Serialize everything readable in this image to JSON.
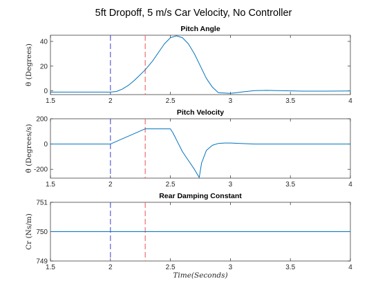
{
  "figure": {
    "suptitle": "5ft Dropoff,   5 m/s Car Velocity,  No Controller"
  },
  "colors": {
    "series": "#0072bd",
    "marker_blue": "#4f4fd8",
    "marker_red": "#f06060",
    "axis": "#262626"
  },
  "chart_data": [
    {
      "type": "line",
      "title": "Pitch Angle",
      "xlabel": "",
      "ylabel": "θ (Degrees)",
      "xlim": [
        1.5,
        4
      ],
      "ylim": [
        -3,
        45
      ],
      "xticks": [
        1.5,
        2,
        2.5,
        3,
        3.5,
        4
      ],
      "xtick_labels": [
        "1.5",
        "2",
        "2.5",
        "3",
        "3.5",
        "4"
      ],
      "yticks": [
        0,
        20,
        40
      ],
      "ytick_labels": [
        "0",
        "20",
        "40"
      ],
      "vlines": [
        {
          "x": 2.0,
          "color": "blue",
          "style": "dashed"
        },
        {
          "x": 2.29,
          "color": "red",
          "style": "dashed"
        }
      ],
      "series": [
        {
          "x": [
            1.5,
            1.9,
            2.0,
            2.05,
            2.1,
            2.15,
            2.2,
            2.29,
            2.35,
            2.4,
            2.45,
            2.5,
            2.55,
            2.6,
            2.65,
            2.7,
            2.75,
            2.8,
            2.85,
            2.9,
            3.0,
            3.1,
            3.2,
            3.3,
            3.4,
            3.5,
            3.6,
            3.8,
            4.0
          ],
          "y": [
            -1,
            -1,
            -1,
            -0.5,
            1.5,
            4.5,
            8.5,
            17,
            24,
            31,
            38,
            43,
            44.5,
            43,
            38,
            30,
            20,
            10,
            3,
            -1.5,
            -2,
            -0.8,
            0.2,
            0.4,
            0.2,
            0,
            -0.2,
            -0.2,
            -0.1
          ]
        }
      ]
    },
    {
      "type": "line",
      "title": "Pitch Velocity",
      "xlabel": "",
      "ylabel": "θ̇ (Degrees/s)",
      "xlim": [
        1.5,
        4
      ],
      "ylim": [
        -270,
        200
      ],
      "xticks": [
        1.5,
        2,
        2.5,
        3,
        3.5,
        4
      ],
      "xtick_labels": [
        "1.5",
        "2",
        "2.5",
        "3",
        "3.5",
        "4"
      ],
      "yticks": [
        -200,
        0,
        200
      ],
      "ytick_labels": [
        "-200",
        "0",
        "200"
      ],
      "vlines": [
        {
          "x": 2.0,
          "color": "blue",
          "style": "dashed"
        },
        {
          "x": 2.29,
          "color": "red",
          "style": "dashed"
        }
      ],
      "series": [
        {
          "x": [
            1.5,
            2.0,
            2.29,
            2.5,
            2.52,
            2.6,
            2.65,
            2.7,
            2.74,
            2.76,
            2.8,
            2.85,
            2.9,
            2.95,
            3.0,
            3.1,
            3.2,
            3.4,
            4.0
          ],
          "y": [
            0,
            0,
            120,
            120,
            90,
            -60,
            -130,
            -200,
            -265,
            -150,
            -50,
            -10,
            5,
            8,
            8,
            4,
            0,
            0,
            0
          ]
        }
      ]
    },
    {
      "type": "line",
      "title": "Rear Damping Constant",
      "xlabel": "Time(Seconds)",
      "ylabel": "Cr (Ns/m)",
      "xlim": [
        1.5,
        4
      ],
      "ylim": [
        749,
        751
      ],
      "xticks": [
        1.5,
        2,
        2.5,
        3,
        3.5,
        4
      ],
      "xtick_labels": [
        "1.5",
        "2",
        "2.5",
        "3",
        "3.5",
        "4"
      ],
      "yticks": [
        749,
        750,
        751
      ],
      "ytick_labels": [
        "749",
        "750",
        "751"
      ],
      "vlines": [
        {
          "x": 2.0,
          "color": "blue",
          "style": "dashed"
        },
        {
          "x": 2.29,
          "color": "red",
          "style": "dashed"
        }
      ],
      "series": [
        {
          "x": [
            1.5,
            4.0
          ],
          "y": [
            750,
            750
          ]
        }
      ]
    }
  ]
}
